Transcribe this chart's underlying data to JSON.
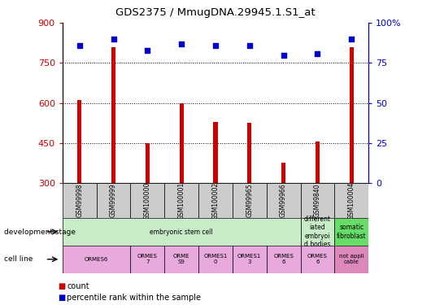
{
  "title": "GDS2375 / MmugDNA.29945.1.S1_at",
  "samples": [
    "GSM99998",
    "GSM99999",
    "GSM100000",
    "GSM100001",
    "GSM100002",
    "GSM99965",
    "GSM99966",
    "GSM99840",
    "GSM100004"
  ],
  "counts": [
    610,
    810,
    450,
    600,
    530,
    525,
    375,
    455,
    810
  ],
  "percentiles": [
    86,
    90,
    83,
    87,
    86,
    86,
    80,
    81,
    90
  ],
  "ylim_left": [
    300,
    900
  ],
  "ylim_right": [
    0,
    100
  ],
  "yticks_left": [
    300,
    450,
    600,
    750,
    900
  ],
  "yticks_right": [
    0,
    25,
    50,
    75,
    100
  ],
  "ytick_labels_right": [
    "0",
    "25",
    "50",
    "75",
    "100%"
  ],
  "bar_color": "#cc0000",
  "scatter_color": "#0000cc",
  "grid_color": "#000000",
  "ylabel_left_color": "#cc0000",
  "ylabel_right_color": "#0000cc",
  "sample_box_color": "#cccccc",
  "dev_groups": [
    {
      "start": 0,
      "end": 6,
      "label": "embryonic stem cell",
      "color": "#c8ecc8"
    },
    {
      "start": 7,
      "end": 7,
      "label": "different\niated\nembryoi\nd bodies",
      "color": "#c8ecc8"
    },
    {
      "start": 8,
      "end": 8,
      "label": "somatic\nfibroblast",
      "color": "#66dd66"
    }
  ],
  "cell_groups": [
    {
      "start": 0,
      "end": 1,
      "label": "ORMES6",
      "color": "#e8aadd"
    },
    {
      "start": 2,
      "end": 2,
      "label": "ORMES\n7",
      "color": "#e8aadd"
    },
    {
      "start": 3,
      "end": 3,
      "label": "ORME\nS9",
      "color": "#e8aadd"
    },
    {
      "start": 4,
      "end": 4,
      "label": "ORMES1\n0",
      "color": "#e8aadd"
    },
    {
      "start": 5,
      "end": 5,
      "label": "ORMES1\n3",
      "color": "#e8aadd"
    },
    {
      "start": 6,
      "end": 6,
      "label": "ORMES\n6",
      "color": "#e8aadd"
    },
    {
      "start": 7,
      "end": 7,
      "label": "ORMES\n6",
      "color": "#e8aadd"
    },
    {
      "start": 8,
      "end": 8,
      "label": "not appli\ncable",
      "color": "#dd88bb"
    }
  ],
  "dev_stage_label": "development stage",
  "cell_line_label": "cell line",
  "legend_count": "count",
  "legend_pct": "percentile rank within the sample"
}
